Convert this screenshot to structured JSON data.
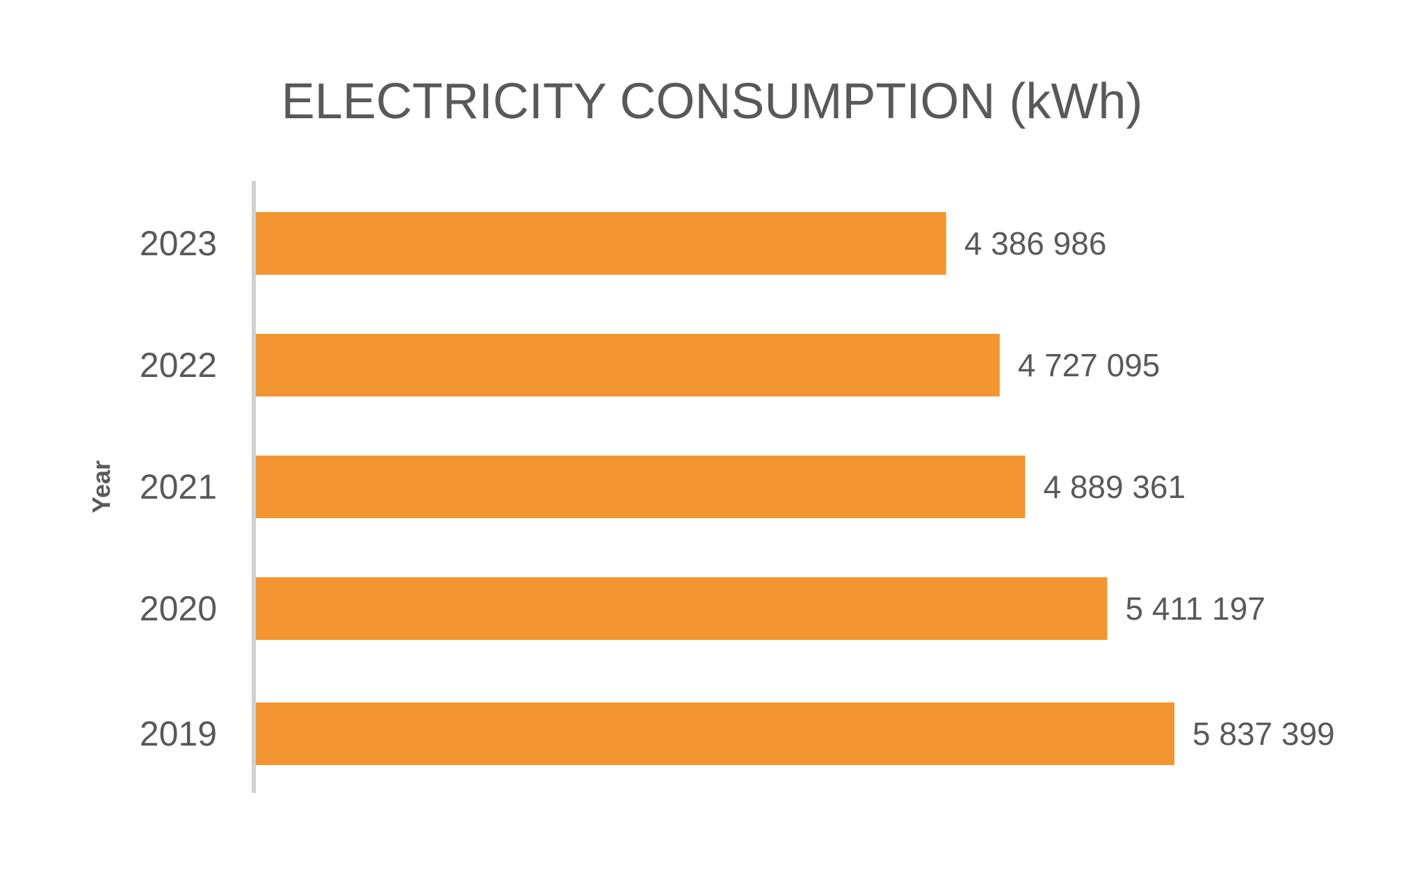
{
  "chart_data": {
    "type": "bar",
    "orientation": "horizontal",
    "title": "ELECTRICITY CONSUMPTION (kWh)",
    "ylabel": "Year",
    "xlabel": "",
    "categories": [
      "2023",
      "2022",
      "2021",
      "2020",
      "2019"
    ],
    "values": [
      4386986,
      4727095,
      4889361,
      5411197,
      5837399
    ],
    "value_labels": [
      "4 386 986",
      "4 727 095",
      "4 889 361",
      "5 411 197",
      "5 837 399"
    ],
    "xlim": [
      0,
      5837399
    ],
    "grid": false,
    "legend": "none",
    "colors": {
      "bar": "#F39530",
      "axis_line": "#D0D0D0",
      "text": "#595959"
    }
  }
}
